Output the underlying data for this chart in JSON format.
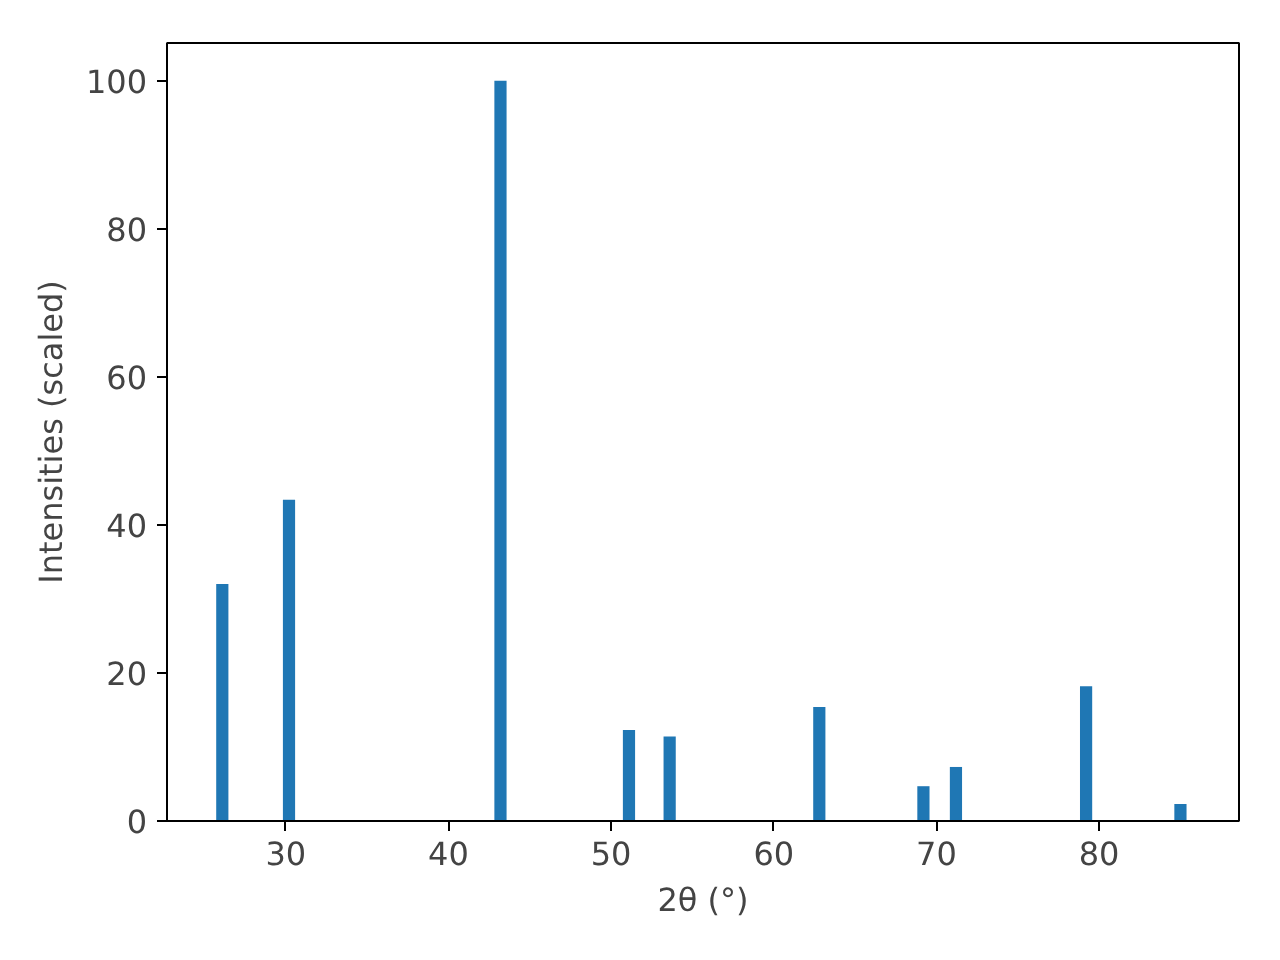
{
  "chart_data": {
    "type": "bar",
    "xlabel": "2θ (°)",
    "ylabel": "Intensities (scaled)",
    "x": [
      26.1,
      30.2,
      43.2,
      51.1,
      53.6,
      62.8,
      69.2,
      71.2,
      79.2,
      85.0
    ],
    "values": [
      32.0,
      43.4,
      100,
      12.3,
      11.4,
      15.4,
      4.7,
      7.3,
      18.2,
      2.3
    ],
    "color": "#1f77b4",
    "xlim": [
      22.7,
      88.6
    ],
    "xticks": [
      30,
      40,
      50,
      60,
      70,
      80
    ],
    "ylim": [
      0,
      105.1
    ],
    "yticks": [
      0,
      20,
      40,
      60,
      80,
      100
    ],
    "grid": false
  }
}
